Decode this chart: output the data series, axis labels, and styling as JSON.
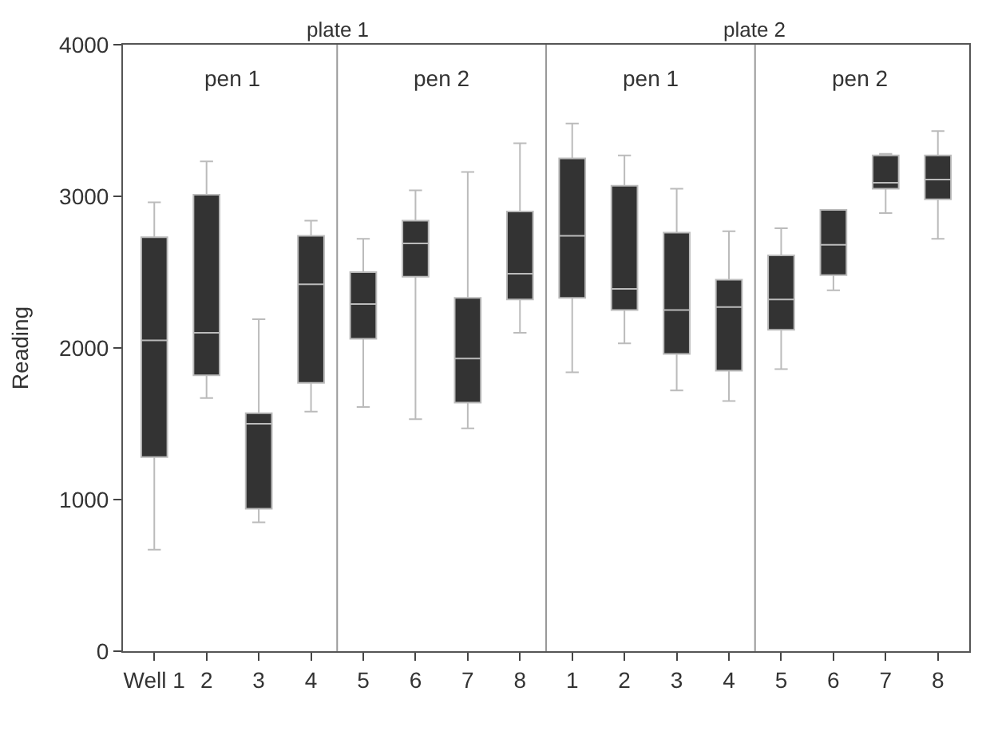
{
  "chart_data": {
    "type": "box",
    "ylabel": "Reading",
    "categories": [
      "Well 1",
      "2",
      "3",
      "4",
      "5",
      "6",
      "7",
      "8",
      "1",
      "2",
      "3",
      "4",
      "5",
      "6",
      "7",
      "8"
    ],
    "boxes": [
      {
        "low": 670,
        "q1": 1280,
        "median": 2050,
        "q3": 2730,
        "high": 2960
      },
      {
        "low": 1670,
        "q1": 1820,
        "median": 2100,
        "q3": 3010,
        "high": 3230
      },
      {
        "low": 850,
        "q1": 940,
        "median": 1500,
        "q3": 1570,
        "high": 2190
      },
      {
        "low": 1580,
        "q1": 1770,
        "median": 2420,
        "q3": 2740,
        "high": 2840
      },
      {
        "low": 1610,
        "q1": 2060,
        "median": 2290,
        "q3": 2500,
        "high": 2720
      },
      {
        "low": 1530,
        "q1": 2470,
        "median": 2690,
        "q3": 2840,
        "high": 3040
      },
      {
        "low": 1470,
        "q1": 1640,
        "median": 1930,
        "q3": 2330,
        "high": 3160
      },
      {
        "low": 2100,
        "q1": 2320,
        "median": 2490,
        "q3": 2900,
        "high": 3350
      },
      {
        "low": 1840,
        "q1": 2330,
        "median": 2740,
        "q3": 3250,
        "high": 3480
      },
      {
        "low": 2030,
        "q1": 2250,
        "median": 2390,
        "q3": 3070,
        "high": 3270
      },
      {
        "low": 1720,
        "q1": 1960,
        "median": 2250,
        "q3": 2760,
        "high": 3050
      },
      {
        "low": 1650,
        "q1": 1850,
        "median": 2270,
        "q3": 2450,
        "high": 2770
      },
      {
        "low": 1860,
        "q1": 2120,
        "median": 2320,
        "q3": 2610,
        "high": 2790
      },
      {
        "low": 2380,
        "q1": 2480,
        "median": 2680,
        "q3": 2910,
        "high": 2910
      },
      {
        "low": 2890,
        "q1": 3050,
        "median": 3090,
        "q3": 3270,
        "high": 3280
      },
      {
        "low": 2720,
        "q1": 2980,
        "median": 3110,
        "q3": 3270,
        "high": 3430
      }
    ],
    "color": "#333333",
    "ylim": [
      0,
      4000
    ],
    "yticks": [
      0,
      1000,
      2000,
      3000,
      4000
    ],
    "annotations": [
      "plate 1",
      "plate 2",
      "pen 1",
      "pen 2",
      "pen 1",
      "pen 2"
    ]
  }
}
